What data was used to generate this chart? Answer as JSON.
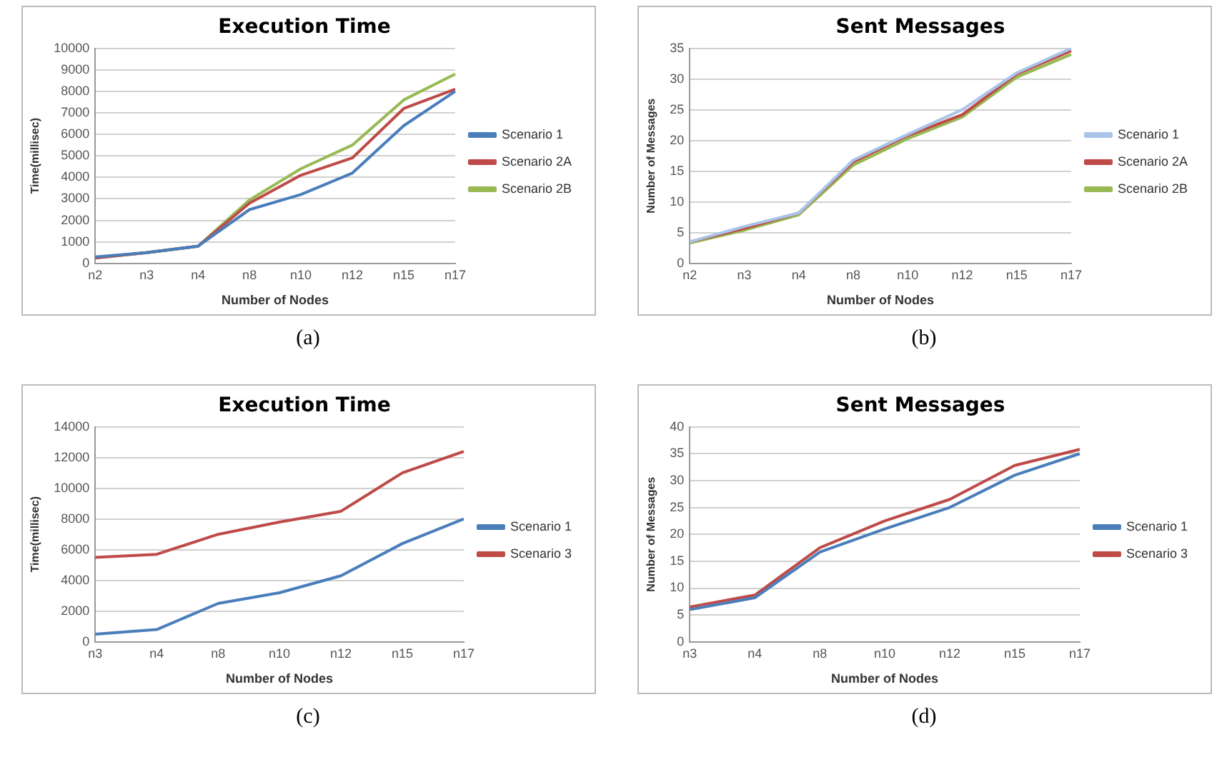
{
  "chart_data": [
    {
      "type": "line",
      "title": "Execution Time",
      "xlabel": "Number of Nodes",
      "ylabel": "Time(millisec)",
      "categories": [
        "n2",
        "n3",
        "n4",
        "n8",
        "n10",
        "n12",
        "n15",
        "n17"
      ],
      "series": [
        {
          "name": "Scenario 1",
          "color": "#4a7ebb",
          "values": [
            300,
            500,
            800,
            2500,
            3200,
            4200,
            6400,
            8000
          ]
        },
        {
          "name": "Scenario 2A",
          "color": "#be4b48",
          "values": [
            250,
            500,
            800,
            2800,
            4100,
            4900,
            7200,
            8100
          ]
        },
        {
          "name": "Scenario 2B",
          "color": "#98b954",
          "values": [
            250,
            500,
            800,
            2950,
            4400,
            5500,
            7600,
            8800
          ]
        }
      ],
      "ylim": [
        0,
        10000
      ],
      "yticks": [
        0,
        1000,
        2000,
        3000,
        4000,
        5000,
        6000,
        7000,
        8000,
        9000,
        10000
      ],
      "grid": "y",
      "legend": "right",
      "annotations": [
        "(a)"
      ]
    },
    {
      "type": "line",
      "title": "Sent Messages",
      "xlabel": "Number of Nodes",
      "ylabel": "Number of Messages",
      "categories": [
        "n2",
        "n3",
        "n4",
        "n8",
        "n10",
        "n12",
        "n15",
        "n17"
      ],
      "series": [
        {
          "name": "Scenario 1",
          "color": "#a9c4e8",
          "values": [
            3.5,
            6,
            8.2,
            16.8,
            21,
            25,
            31,
            35
          ]
        },
        {
          "name": "Scenario 2A",
          "color": "#be4b48",
          "values": [
            3.5,
            5.7,
            8.2,
            16.5,
            20.8,
            24.2,
            30.8,
            34.6
          ]
        },
        {
          "name": "Scenario 2B",
          "color": "#98b954",
          "values": [
            3.3,
            5.4,
            7.9,
            16,
            20.3,
            23.8,
            30.3,
            34
          ]
        }
      ],
      "ylim": [
        0,
        35
      ],
      "yticks": [
        0,
        5,
        10,
        15,
        20,
        25,
        30,
        35
      ],
      "grid": "y",
      "legend": "right",
      "annotations": [
        "(b)"
      ]
    },
    {
      "type": "line",
      "title": "Execution Time",
      "xlabel": "Number of Nodes",
      "ylabel": "Time(millisec)",
      "categories": [
        "n3",
        "n4",
        "n8",
        "n10",
        "n12",
        "n15",
        "n17"
      ],
      "series": [
        {
          "name": "Scenario 1",
          "color": "#4a7ebb",
          "values": [
            500,
            800,
            2500,
            3200,
            4300,
            6400,
            8000
          ]
        },
        {
          "name": "Scenario 3",
          "color": "#be4b48",
          "values": [
            5500,
            5700,
            7000,
            7800,
            8500,
            11000,
            12400
          ]
        }
      ],
      "ylim": [
        0,
        14000
      ],
      "yticks": [
        0,
        2000,
        4000,
        6000,
        8000,
        10000,
        12000,
        14000
      ],
      "grid": "y",
      "legend": "right",
      "annotations": [
        "(c)"
      ]
    },
    {
      "type": "line",
      "title": "Sent Messages",
      "xlabel": "Number of Nodes",
      "ylabel": "Number of Messages",
      "categories": [
        "n3",
        "n4",
        "n8",
        "n10",
        "n12",
        "n15",
        "n17"
      ],
      "series": [
        {
          "name": "Scenario 1",
          "color": "#4a7ebb",
          "values": [
            6,
            8.2,
            16.7,
            21,
            25,
            31,
            35
          ]
        },
        {
          "name": "Scenario 3",
          "color": "#be4b48",
          "values": [
            6.5,
            8.7,
            17.5,
            22.5,
            26.5,
            32.8,
            35.8
          ]
        }
      ],
      "ylim": [
        0,
        40
      ],
      "yticks": [
        0,
        5,
        10,
        15,
        20,
        25,
        30,
        35,
        40
      ],
      "grid": "y",
      "legend": "right",
      "annotations": [
        "(d)"
      ]
    }
  ]
}
